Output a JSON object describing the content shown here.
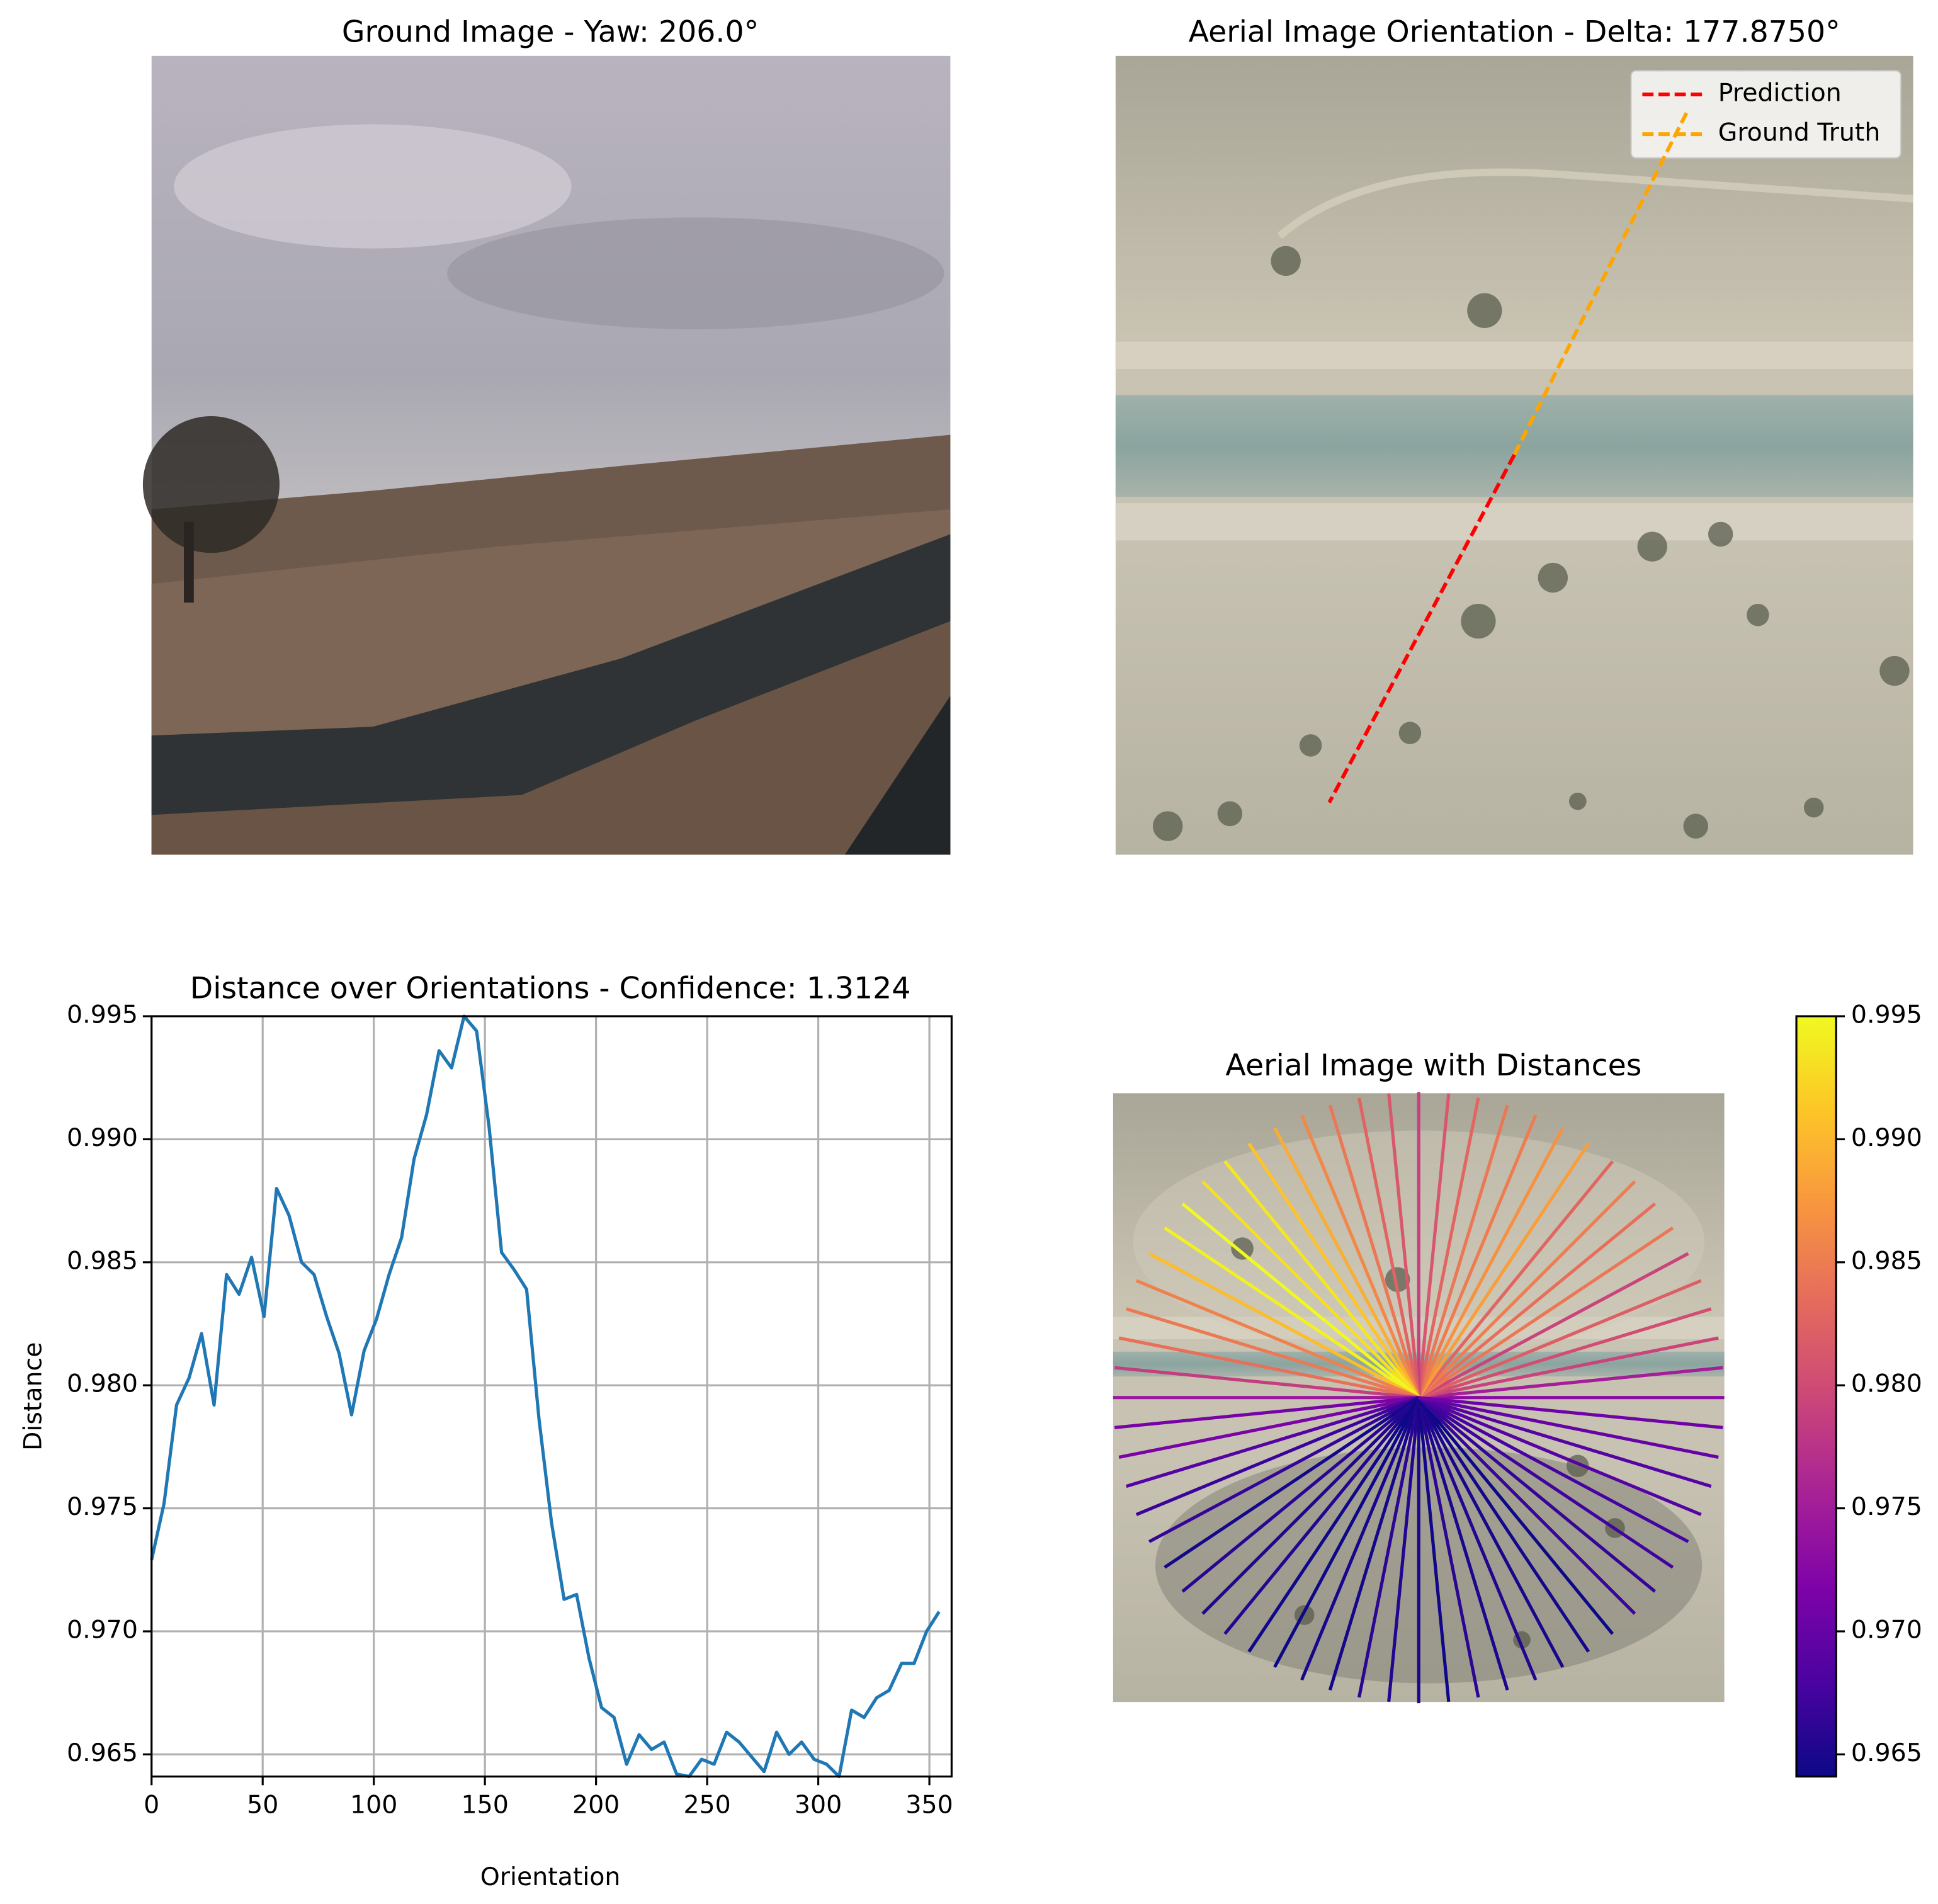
{
  "chart_data": [
    {
      "type": "image",
      "title": "Ground Image - Yaw: 206.0°"
    },
    {
      "type": "image",
      "title": "Aerial Image Orientation - Delta: 177.8750°",
      "legend": "upper right",
      "series": [
        {
          "name": "Prediction",
          "color": "#ff0000"
        },
        {
          "name": "Ground Truth",
          "color": "#ffa500"
        }
      ]
    },
    {
      "type": "line",
      "title": "Distance over Orientations - Confidence: 1.3124",
      "xlabel": "Orientation",
      "ylabel": "Distance",
      "color": "#1f77b4",
      "grid": true,
      "x": [
        0,
        5.625,
        11.25,
        16.875,
        22.5,
        28.125,
        33.75,
        39.375,
        45,
        50.625,
        56.25,
        61.875,
        67.5,
        73.125,
        78.75,
        84.375,
        90,
        95.625,
        101.25,
        106.875,
        112.5,
        118.125,
        123.75,
        129.375,
        135,
        140.625,
        146.25,
        151.875,
        157.5,
        163.125,
        168.75,
        174.375,
        180,
        185.625,
        191.25,
        196.875,
        202.5,
        208.125,
        213.75,
        219.375,
        225,
        230.625,
        236.25,
        241.875,
        247.5,
        253.125,
        258.75,
        264.375,
        270,
        275.625,
        281.25,
        286.875,
        292.5,
        298.125,
        303.75,
        309.375,
        315,
        320.625,
        326.25,
        331.875,
        337.5,
        343.125,
        348.75,
        354.375
      ],
      "values": [
        0.9729,
        0.9752,
        0.9792,
        0.9803,
        0.9821,
        0.9792,
        0.9845,
        0.9837,
        0.9852,
        0.9828,
        0.988,
        0.9869,
        0.985,
        0.9845,
        0.9828,
        0.9813,
        0.9788,
        0.9814,
        0.9827,
        0.9845,
        0.986,
        0.9892,
        0.991,
        0.9936,
        0.9929,
        0.995,
        0.9944,
        0.9905,
        0.9854,
        0.9847,
        0.9839,
        0.9786,
        0.9744,
        0.9713,
        0.9715,
        0.9689,
        0.9669,
        0.9665,
        0.9646,
        0.9658,
        0.9652,
        0.9655,
        0.9642,
        0.9641,
        0.9648,
        0.9646,
        0.9659,
        0.9655,
        0.9649,
        0.9643,
        0.9659,
        0.965,
        0.9655,
        0.9648,
        0.9646,
        0.9641,
        0.9668,
        0.9665,
        0.9673,
        0.9676,
        0.9687,
        0.9687,
        0.97,
        0.9708
      ],
      "xlim": [
        0,
        360
      ],
      "xticks": [
        0,
        50,
        100,
        150,
        200,
        250,
        300,
        350
      ],
      "ylim": [
        0.9641,
        0.995
      ],
      "yticks": [
        0.965,
        {
          "value": 0.97,
          "label": "0.970"
        },
        0.975,
        {
          "value": 0.98,
          "label": "0.980"
        },
        0.985,
        {
          "value": 0.99,
          "label": "0.990"
        },
        0.995
      ]
    },
    {
      "type": "radial",
      "title": "Aerial Image with Distances",
      "colormap": "plasma",
      "clim": [
        0.9641,
        0.995
      ],
      "cticks": [
        0.965,
        {
          "value": 0.97,
          "label": "0.970"
        },
        0.975,
        {
          "value": 0.98,
          "label": "0.980"
        },
        0.985,
        {
          "value": 0.99,
          "label": "0.990"
        },
        0.995
      ]
    }
  ]
}
